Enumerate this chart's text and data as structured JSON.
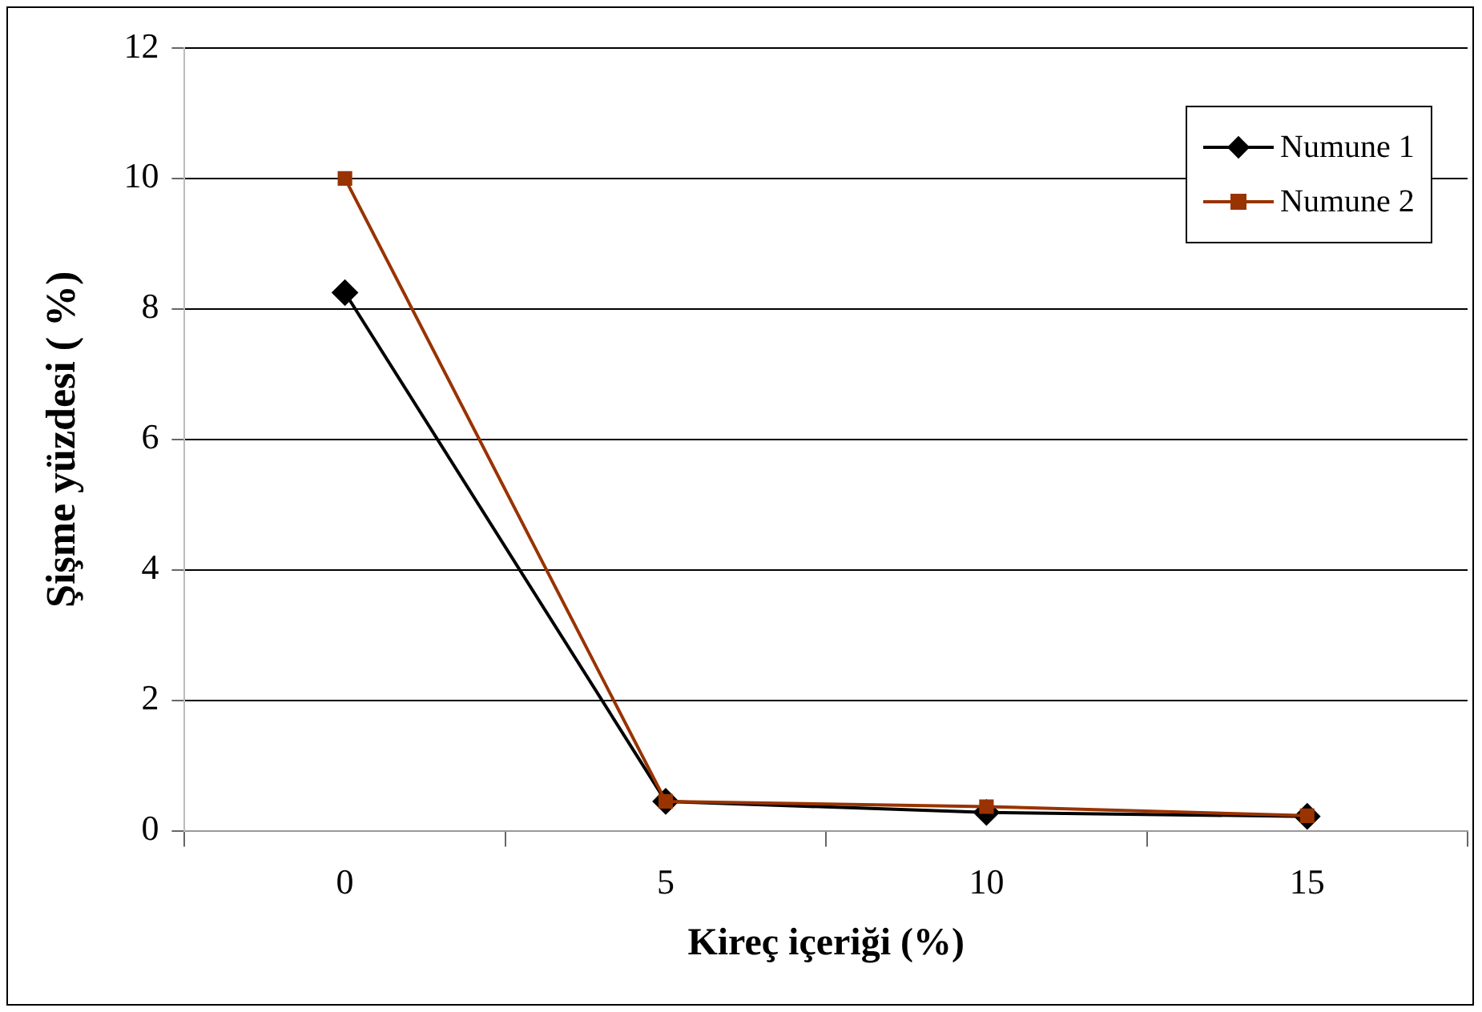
{
  "chart_data": {
    "type": "line",
    "xlabel": "Kireç içeriği (%)",
    "ylabel": "Şişme yüzdesi ( %)",
    "categories": [
      "0",
      "5",
      "10",
      "15"
    ],
    "series": [
      {
        "name": "Numune 1",
        "color": "#000000",
        "marker": "diamond",
        "values": [
          8.25,
          0.45,
          0.28,
          0.22
        ]
      },
      {
        "name": "Numune 2",
        "color": "#993300",
        "marker": "square",
        "values": [
          10,
          0.45,
          0.37,
          0.23
        ]
      }
    ],
    "ylim": [
      0,
      12
    ],
    "yticks": [
      0,
      2,
      4,
      6,
      8,
      10,
      12
    ],
    "grid": "y",
    "legend": "top right",
    "line_style": "solid"
  }
}
